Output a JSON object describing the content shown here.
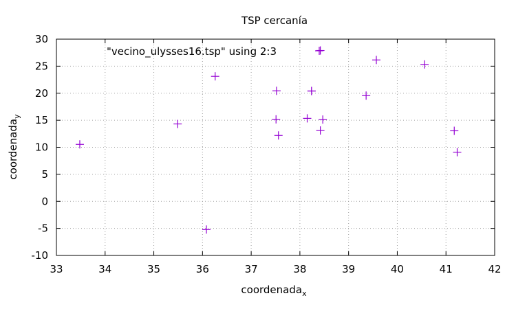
{
  "chart_data": {
    "type": "scatter",
    "title": "TSP cercanía",
    "xlabel": "coordenada",
    "xlabel_sub": "x",
    "ylabel": "coordenada",
    "ylabel_sub": "y",
    "xlim": [
      33,
      42
    ],
    "ylim": [
      -10,
      30
    ],
    "xticks": [
      33,
      34,
      35,
      36,
      37,
      38,
      39,
      40,
      41,
      42
    ],
    "yticks": [
      -10,
      -5,
      0,
      5,
      10,
      15,
      20,
      25,
      30
    ],
    "grid": true,
    "legend_position": "top-left",
    "series": [
      {
        "name": "\"vecino_ulysses16.tsp\" using 2:3",
        "color": "#9400d3",
        "marker": "plus",
        "points": [
          [
            38.24,
            20.42
          ],
          [
            39.57,
            26.15
          ],
          [
            40.56,
            25.32
          ],
          [
            36.26,
            23.12
          ],
          [
            33.48,
            10.54
          ],
          [
            37.56,
            12.19
          ],
          [
            38.42,
            13.11
          ],
          [
            37.52,
            20.44
          ],
          [
            41.23,
            9.1
          ],
          [
            41.17,
            13.05
          ],
          [
            36.08,
            -5.21
          ],
          [
            38.47,
            15.13
          ],
          [
            38.15,
            15.35
          ],
          [
            37.51,
            15.17
          ],
          [
            35.49,
            14.32
          ],
          [
            39.36,
            19.56
          ],
          [
            38.42,
            27.9
          ],
          [
            38.24,
            20.4
          ]
        ]
      }
    ]
  }
}
